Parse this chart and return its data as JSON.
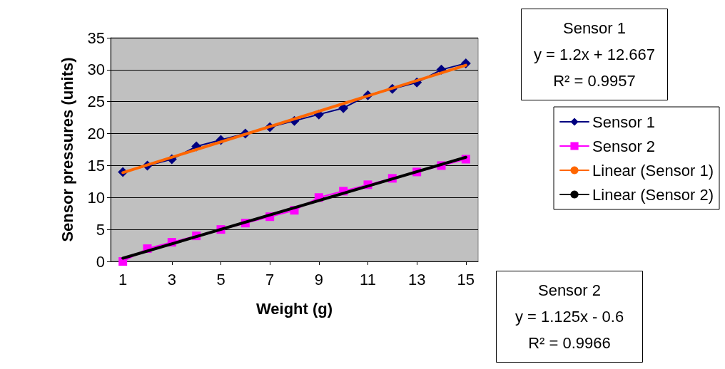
{
  "chart_data": {
    "type": "line",
    "xlabel": "Weight (g)",
    "ylabel": "Sensor pressures (units)",
    "xlim": [
      0.5,
      15.5
    ],
    "xticks": [
      1,
      3,
      5,
      7,
      9,
      11,
      13,
      15
    ],
    "ylim": [
      0,
      35
    ],
    "yticks": [
      0,
      5,
      10,
      15,
      20,
      25,
      30,
      35
    ],
    "grid": "y",
    "legend": "right",
    "series": [
      {
        "name": "Sensor 1",
        "color": "#000080",
        "marker": "diamond",
        "x": [
          1,
          2,
          3,
          4,
          5,
          6,
          7,
          8,
          9,
          10,
          11,
          12,
          13,
          14,
          15
        ],
        "values": [
          14,
          15,
          16,
          18,
          19,
          20,
          21,
          22,
          23,
          24,
          26,
          27,
          28,
          30,
          31
        ]
      },
      {
        "name": "Sensor 2",
        "color": "#ff00ff",
        "marker": "square",
        "x": [
          1,
          2,
          3,
          4,
          5,
          6,
          7,
          8,
          9,
          10,
          11,
          12,
          13,
          14,
          15
        ],
        "values": [
          0,
          2,
          3,
          4,
          5,
          6,
          7,
          8,
          10,
          11,
          12,
          13,
          14,
          15,
          16
        ]
      },
      {
        "name": "Linear (Sensor 1)",
        "color": "#ff6600",
        "marker": "none",
        "x": [
          1,
          15
        ],
        "values": [
          13.9,
          30.7
        ]
      },
      {
        "name": "Linear (Sensor 2)",
        "color": "#000000",
        "marker": "none",
        "x": [
          1,
          15
        ],
        "values": [
          0.5,
          16.3
        ]
      }
    ],
    "annotations": [
      "Sensor 1\ny = 1.2x + 12.667\nR² = 0.9957",
      "Sensor 2\ny = 1.125x - 0.6\nR² = 0.9966"
    ]
  }
}
